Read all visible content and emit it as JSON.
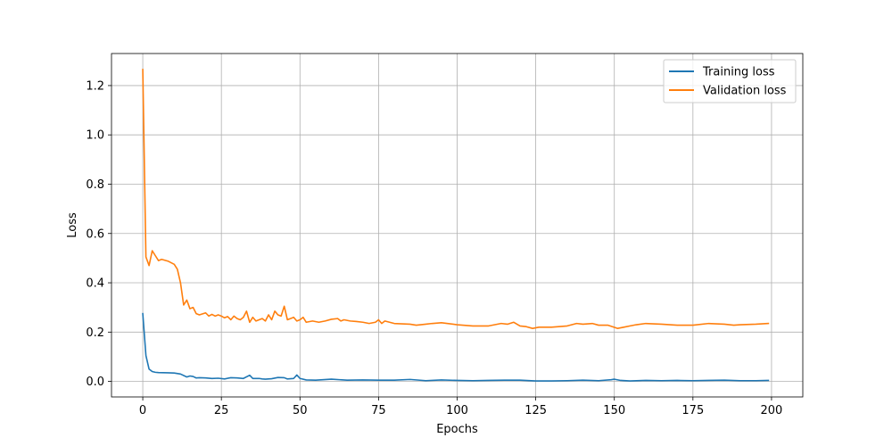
{
  "chart_data": {
    "type": "line",
    "title": "",
    "xlabel": "Epochs",
    "ylabel": "Loss",
    "xlim": [
      -9.95,
      209.95
    ],
    "ylim": [
      -0.063,
      1.33
    ],
    "xticks": [
      0,
      25,
      50,
      75,
      100,
      125,
      150,
      175,
      200
    ],
    "yticks": [
      0.0,
      0.2,
      0.4,
      0.6,
      0.8,
      1.0,
      1.2
    ],
    "xtick_labels": [
      "0",
      "25",
      "50",
      "75",
      "100",
      "125",
      "150",
      "175",
      "200"
    ],
    "ytick_labels": [
      "0.0",
      "0.2",
      "0.4",
      "0.6",
      "0.8",
      "1.0",
      "1.2"
    ],
    "grid": true,
    "legend_position": "top-right",
    "series": [
      {
        "name": "Training loss",
        "color": "#1f77b4",
        "points": [
          [
            0,
            0.275
          ],
          [
            1,
            0.105
          ],
          [
            2,
            0.05
          ],
          [
            3,
            0.04
          ],
          [
            4,
            0.037
          ],
          [
            5,
            0.036
          ],
          [
            8,
            0.035
          ],
          [
            10,
            0.034
          ],
          [
            12,
            0.03
          ],
          [
            14,
            0.018
          ],
          [
            15,
            0.022
          ],
          [
            16,
            0.02
          ],
          [
            17,
            0.014
          ],
          [
            18,
            0.015
          ],
          [
            20,
            0.014
          ],
          [
            22,
            0.012
          ],
          [
            24,
            0.013
          ],
          [
            26,
            0.01
          ],
          [
            28,
            0.015
          ],
          [
            30,
            0.014
          ],
          [
            32,
            0.012
          ],
          [
            34,
            0.025
          ],
          [
            35,
            0.012
          ],
          [
            37,
            0.012
          ],
          [
            38,
            0.01
          ],
          [
            39,
            0.009
          ],
          [
            41,
            0.011
          ],
          [
            43,
            0.016
          ],
          [
            45,
            0.015
          ],
          [
            46,
            0.01
          ],
          [
            48,
            0.012
          ],
          [
            49,
            0.026
          ],
          [
            50,
            0.012
          ],
          [
            52,
            0.006
          ],
          [
            55,
            0.005
          ],
          [
            60,
            0.009
          ],
          [
            65,
            0.005
          ],
          [
            70,
            0.006
          ],
          [
            75,
            0.005
          ],
          [
            80,
            0.005
          ],
          [
            85,
            0.008
          ],
          [
            90,
            0.003
          ],
          [
            95,
            0.006
          ],
          [
            100,
            0.004
          ],
          [
            105,
            0.003
          ],
          [
            110,
            0.004
          ],
          [
            115,
            0.005
          ],
          [
            120,
            0.005
          ],
          [
            125,
            0.002
          ],
          [
            130,
            0.002
          ],
          [
            135,
            0.003
          ],
          [
            140,
            0.005
          ],
          [
            145,
            0.003
          ],
          [
            149,
            0.007
          ],
          [
            150,
            0.009
          ],
          [
            152,
            0.004
          ],
          [
            155,
            0.002
          ],
          [
            160,
            0.004
          ],
          [
            165,
            0.003
          ],
          [
            170,
            0.004
          ],
          [
            175,
            0.003
          ],
          [
            180,
            0.004
          ],
          [
            185,
            0.005
          ],
          [
            190,
            0.003
          ],
          [
            195,
            0.003
          ],
          [
            199,
            0.004
          ]
        ]
      },
      {
        "name": "Validation loss",
        "color": "#ff7f0e",
        "points": [
          [
            0,
            1.265
          ],
          [
            1,
            0.505
          ],
          [
            2,
            0.47
          ],
          [
            3,
            0.53
          ],
          [
            4,
            0.51
          ],
          [
            5,
            0.49
          ],
          [
            6,
            0.495
          ],
          [
            8,
            0.488
          ],
          [
            10,
            0.475
          ],
          [
            11,
            0.455
          ],
          [
            12,
            0.4
          ],
          [
            13,
            0.31
          ],
          [
            14,
            0.33
          ],
          [
            15,
            0.295
          ],
          [
            16,
            0.3
          ],
          [
            17,
            0.275
          ],
          [
            18,
            0.27
          ],
          [
            20,
            0.278
          ],
          [
            21,
            0.265
          ],
          [
            22,
            0.272
          ],
          [
            23,
            0.265
          ],
          [
            24,
            0.27
          ],
          [
            25,
            0.265
          ],
          [
            26,
            0.258
          ],
          [
            27,
            0.263
          ],
          [
            28,
            0.25
          ],
          [
            29,
            0.265
          ],
          [
            30,
            0.255
          ],
          [
            31,
            0.25
          ],
          [
            32,
            0.26
          ],
          [
            33,
            0.285
          ],
          [
            34,
            0.24
          ],
          [
            35,
            0.26
          ],
          [
            36,
            0.245
          ],
          [
            37,
            0.25
          ],
          [
            38,
            0.255
          ],
          [
            39,
            0.245
          ],
          [
            40,
            0.27
          ],
          [
            41,
            0.25
          ],
          [
            42,
            0.285
          ],
          [
            43,
            0.27
          ],
          [
            44,
            0.265
          ],
          [
            45,
            0.305
          ],
          [
            46,
            0.25
          ],
          [
            47,
            0.255
          ],
          [
            48,
            0.26
          ],
          [
            49,
            0.245
          ],
          [
            50,
            0.25
          ],
          [
            51,
            0.26
          ],
          [
            52,
            0.24
          ],
          [
            54,
            0.245
          ],
          [
            56,
            0.24
          ],
          [
            58,
            0.245
          ],
          [
            60,
            0.252
          ],
          [
            62,
            0.255
          ],
          [
            63,
            0.245
          ],
          [
            64,
            0.25
          ],
          [
            66,
            0.245
          ],
          [
            68,
            0.243
          ],
          [
            70,
            0.24
          ],
          [
            72,
            0.235
          ],
          [
            74,
            0.24
          ],
          [
            75,
            0.25
          ],
          [
            76,
            0.235
          ],
          [
            77,
            0.245
          ],
          [
            80,
            0.235
          ],
          [
            85,
            0.232
          ],
          [
            87,
            0.228
          ],
          [
            90,
            0.232
          ],
          [
            92,
            0.235
          ],
          [
            95,
            0.238
          ],
          [
            100,
            0.23
          ],
          [
            105,
            0.225
          ],
          [
            110,
            0.225
          ],
          [
            114,
            0.235
          ],
          [
            116,
            0.232
          ],
          [
            118,
            0.24
          ],
          [
            120,
            0.225
          ],
          [
            122,
            0.222
          ],
          [
            124,
            0.215
          ],
          [
            126,
            0.22
          ],
          [
            130,
            0.22
          ],
          [
            135,
            0.225
          ],
          [
            138,
            0.235
          ],
          [
            140,
            0.232
          ],
          [
            143,
            0.235
          ],
          [
            145,
            0.228
          ],
          [
            148,
            0.228
          ],
          [
            151,
            0.215
          ],
          [
            153,
            0.22
          ],
          [
            155,
            0.225
          ],
          [
            157,
            0.23
          ],
          [
            160,
            0.235
          ],
          [
            165,
            0.232
          ],
          [
            170,
            0.228
          ],
          [
            175,
            0.228
          ],
          [
            180,
            0.235
          ],
          [
            185,
            0.232
          ],
          [
            188,
            0.228
          ],
          [
            190,
            0.23
          ],
          [
            195,
            0.232
          ],
          [
            199,
            0.235
          ]
        ]
      }
    ]
  }
}
